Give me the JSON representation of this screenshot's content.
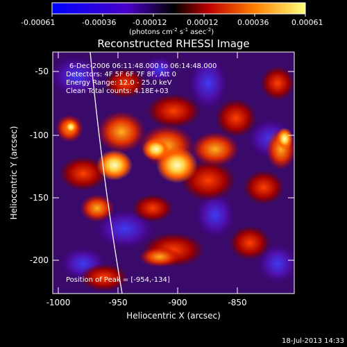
{
  "colorbar": {
    "ticks": [
      "-0.00061",
      "-0.00036",
      "-0.00012",
      "0.00012",
      "0.00036",
      "0.00061"
    ],
    "units_main": "(photons cm",
    "units_sup1": "-2",
    "units_mid": " s",
    "units_sup2": "-1",
    "units_mid2": " asec",
    "units_sup3": "-2",
    "units_end": ")"
  },
  "plot": {
    "title": "Reconstructed RHESSI Image",
    "xlabel": "Heliocentric X (arcsec)",
    "ylabel": "Heliocentric Y (arcsec)",
    "xticks": [
      "-1000",
      "-950",
      "-900",
      "-850"
    ],
    "yticks": [
      "-50",
      "-100",
      "-150",
      "-200"
    ],
    "annotations": {
      "time": "6-Dec-2006 06:11:48.000 to 06:14:48.000",
      "detectors": "Detectors: 4F 5F 6F 7F 8F, Att 0",
      "energy": "Energy Range: 12.0 - 25.0 keV",
      "clean": "Clean    Total counts: 4.18E+03",
      "peak": "Position of Peak = [-954,-134]"
    }
  },
  "footer": {
    "timestamp": "18-Jul-2013 14:33"
  }
}
